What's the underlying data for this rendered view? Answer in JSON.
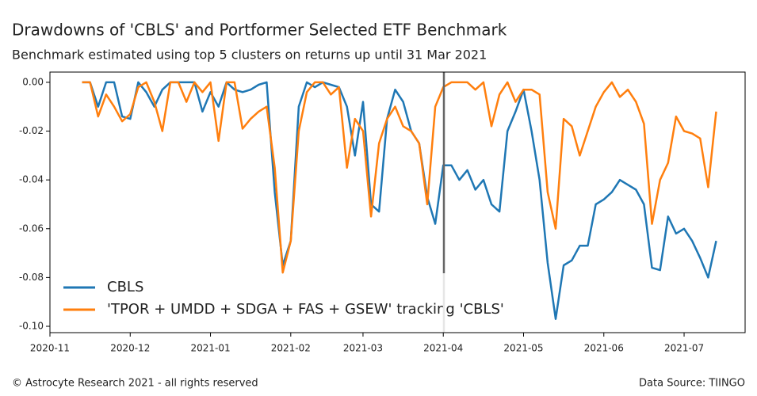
{
  "chart_data": {
    "type": "line",
    "title": "Drawdowns of 'CBLS' and Portformer Selected ETF Benchmark",
    "subtitle": "Benchmark estimated using top 5 clusters on returns up until 31 Mar 2021",
    "footer_left": "© Astrocyte Research 2021 - all rights reserved",
    "footer_right": "Data Source: TIINGO",
    "legend": "lower left",
    "categories": [
      "2020-11",
      null,
      null,
      null,
      null,
      null,
      null,
      null,
      null,
      null,
      "2020-12",
      null,
      null,
      null,
      null,
      null,
      null,
      null,
      null,
      null,
      "2021-01",
      null,
      null,
      null,
      null,
      null,
      null,
      null,
      null,
      null,
      "2021-02",
      null,
      null,
      null,
      null,
      null,
      null,
      null,
      null,
      "2021-03",
      null,
      null,
      null,
      null,
      null,
      null,
      null,
      null,
      null,
      "2021-04",
      null,
      null,
      null,
      null,
      null,
      null,
      null,
      null,
      null,
      "2021-05",
      null,
      null,
      null,
      null,
      null,
      null,
      null,
      null,
      null,
      "2021-06",
      null,
      null,
      null,
      null,
      null,
      null,
      null,
      null,
      null,
      "2021-07",
      null,
      null,
      null,
      null,
      null,
      null,
      null
    ],
    "ylim": [
      -0.1026,
      0.0042
    ],
    "yticks": [
      {
        "value": 0,
        "label": "0.00"
      },
      {
        "value": -0.02,
        "label": "-0.02"
      },
      {
        "value": -0.04,
        "label": "-0.04"
      },
      {
        "value": -0.06,
        "label": "-0.06"
      },
      {
        "value": -0.08,
        "label": "-0.08"
      },
      {
        "value": -0.1,
        "label": "-0.10"
      }
    ],
    "series": [
      {
        "name": "CBLS",
        "color": "#1f77b4",
        "values": [
          null,
          null,
          null,
          null,
          0,
          0,
          -0.01,
          0,
          0,
          -0.014,
          -0.015,
          0,
          -0.004,
          -0.01,
          -0.003,
          0,
          0,
          0,
          0,
          -0.012,
          -0.004,
          -0.01,
          0,
          -0.003,
          -0.004,
          -0.003,
          -0.001,
          0,
          -0.045,
          -0.075,
          -0.065,
          -0.01,
          0,
          -0.002,
          0,
          -0.001,
          -0.002,
          -0.01,
          -0.03,
          -0.008,
          -0.05,
          -0.053,
          -0.015,
          -0.003,
          -0.008,
          -0.02,
          -0.025,
          -0.047,
          -0.058,
          -0.034,
          -0.034,
          -0.04,
          -0.036,
          -0.044,
          -0.04,
          -0.05,
          -0.053,
          -0.02,
          -0.012,
          -0.003,
          -0.02,
          -0.04,
          -0.074,
          -0.097,
          -0.075,
          -0.073,
          -0.067,
          -0.067,
          -0.05,
          -0.048,
          -0.045,
          -0.04,
          -0.042,
          -0.044,
          -0.05,
          -0.076,
          -0.077,
          -0.055,
          -0.062,
          -0.06,
          -0.065,
          -0.072,
          -0.08,
          -0.065,
          null,
          null,
          null
        ]
      },
      {
        "name": "'TPOR + UMDD + SDGA + FAS + GSEW' tracking 'CBLS'",
        "color": "#ff7f0e",
        "values": [
          null,
          null,
          null,
          null,
          0,
          0,
          -0.014,
          -0.005,
          -0.01,
          -0.016,
          -0.013,
          -0.002,
          0,
          -0.008,
          -0.02,
          0,
          0,
          -0.008,
          0,
          -0.004,
          0,
          -0.024,
          0,
          0,
          -0.019,
          -0.015,
          -0.012,
          -0.01,
          -0.035,
          -0.078,
          -0.065,
          -0.02,
          -0.004,
          0,
          0,
          -0.005,
          -0.002,
          -0.035,
          -0.015,
          -0.02,
          -0.055,
          -0.025,
          -0.015,
          -0.01,
          -0.018,
          -0.02,
          -0.025,
          -0.05,
          -0.01,
          -0.002,
          0,
          0,
          0,
          -0.003,
          0,
          -0.018,
          -0.005,
          0,
          -0.008,
          -0.003,
          -0.003,
          -0.005,
          -0.045,
          -0.06,
          -0.015,
          -0.018,
          -0.03,
          -0.02,
          -0.01,
          -0.004,
          0,
          -0.006,
          -0.003,
          -0.008,
          -0.017,
          -0.058,
          -0.04,
          -0.033,
          -0.014,
          -0.02,
          -0.021,
          -0.023,
          -0.043,
          -0.012,
          null,
          null,
          null
        ]
      }
    ]
  }
}
